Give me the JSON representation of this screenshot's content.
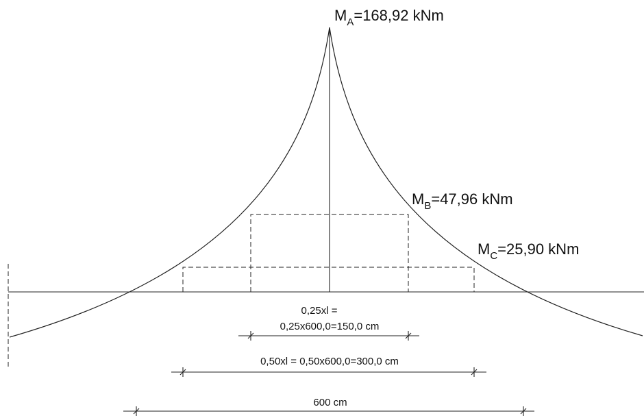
{
  "moments": {
    "a": {
      "symbol": "M",
      "sub": "A",
      "value": "=168,92 kNm"
    },
    "b": {
      "symbol": "M",
      "sub": "B",
      "value": "=47,96 kNm"
    },
    "c": {
      "symbol": "M",
      "sub": "C",
      "value": "=25,90 kNm"
    }
  },
  "dimensions": {
    "quarter_line1": "0,25xl =",
    "quarter_line2": "0,25x600,0=150,0 cm",
    "half": "0,50xl = 0,50x600,0=300,0 cm",
    "full": "600 cm"
  }
}
